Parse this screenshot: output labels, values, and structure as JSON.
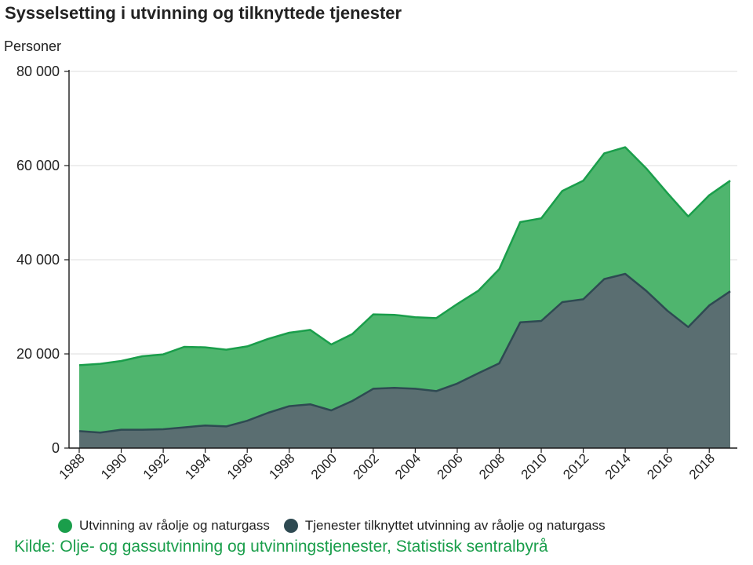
{
  "chart_data": {
    "type": "area",
    "title": "Sysselsetting i utvinning og tilknyttede tjenester",
    "ylabel": "Personer",
    "xlabel": "",
    "ylim": [
      0,
      80000
    ],
    "yticks": [
      0,
      20000,
      40000,
      60000,
      80000
    ],
    "ytick_labels": [
      "0",
      "20 000",
      "40 000",
      "60 000",
      "80 000"
    ],
    "x": [
      1988,
      1989,
      1990,
      1991,
      1992,
      1993,
      1994,
      1995,
      1996,
      1997,
      1998,
      1999,
      2000,
      2001,
      2002,
      2003,
      2004,
      2005,
      2006,
      2007,
      2008,
      2009,
      2010,
      2011,
      2012,
      2013,
      2014,
      2015,
      2016,
      2017,
      2018,
      2019
    ],
    "xtick_labels": [
      "1988",
      "1990",
      "1992",
      "1994",
      "1996",
      "1998",
      "2000",
      "2002",
      "2004",
      "2006",
      "2008",
      "2010",
      "2012",
      "2014",
      "2016",
      "2018"
    ],
    "stacked": true,
    "grid": true,
    "series": [
      {
        "name": "Tjenester tilknyttet utvinning av råolje og naturgass",
        "color": "#2e4a52",
        "values": [
          3600,
          3300,
          3900,
          3900,
          4000,
          4400,
          4800,
          4600,
          5800,
          7500,
          8900,
          9300,
          8000,
          10000,
          12600,
          12800,
          12600,
          12100,
          13700,
          15900,
          18000,
          26700,
          27000,
          31000,
          31600,
          35900,
          37000,
          33400,
          29200,
          25700,
          30300,
          33300
        ]
      },
      {
        "name": "Utvinning av råolje og naturgass",
        "color": "#1a9e4b",
        "values": [
          14000,
          14600,
          14600,
          15600,
          15900,
          17100,
          16600,
          16300,
          15800,
          15700,
          15600,
          15800,
          14000,
          14200,
          15800,
          15500,
          15200,
          15500,
          16900,
          17500,
          20000,
          21300,
          21800,
          23600,
          25200,
          26700,
          26900,
          26000,
          25000,
          23500,
          23400,
          23500
        ]
      }
    ]
  },
  "legend": {
    "items": [
      {
        "label": "Utvinning av råolje og naturgass",
        "color": "#1a9e4b"
      },
      {
        "label": "Tjenester tilknyttet utvinning av råolje og naturgass",
        "color": "#2e4a52"
      }
    ]
  },
  "source": "Kilde: Olje- og gassutvinning og utvinningstjenester, Statistisk sentralbyrå"
}
